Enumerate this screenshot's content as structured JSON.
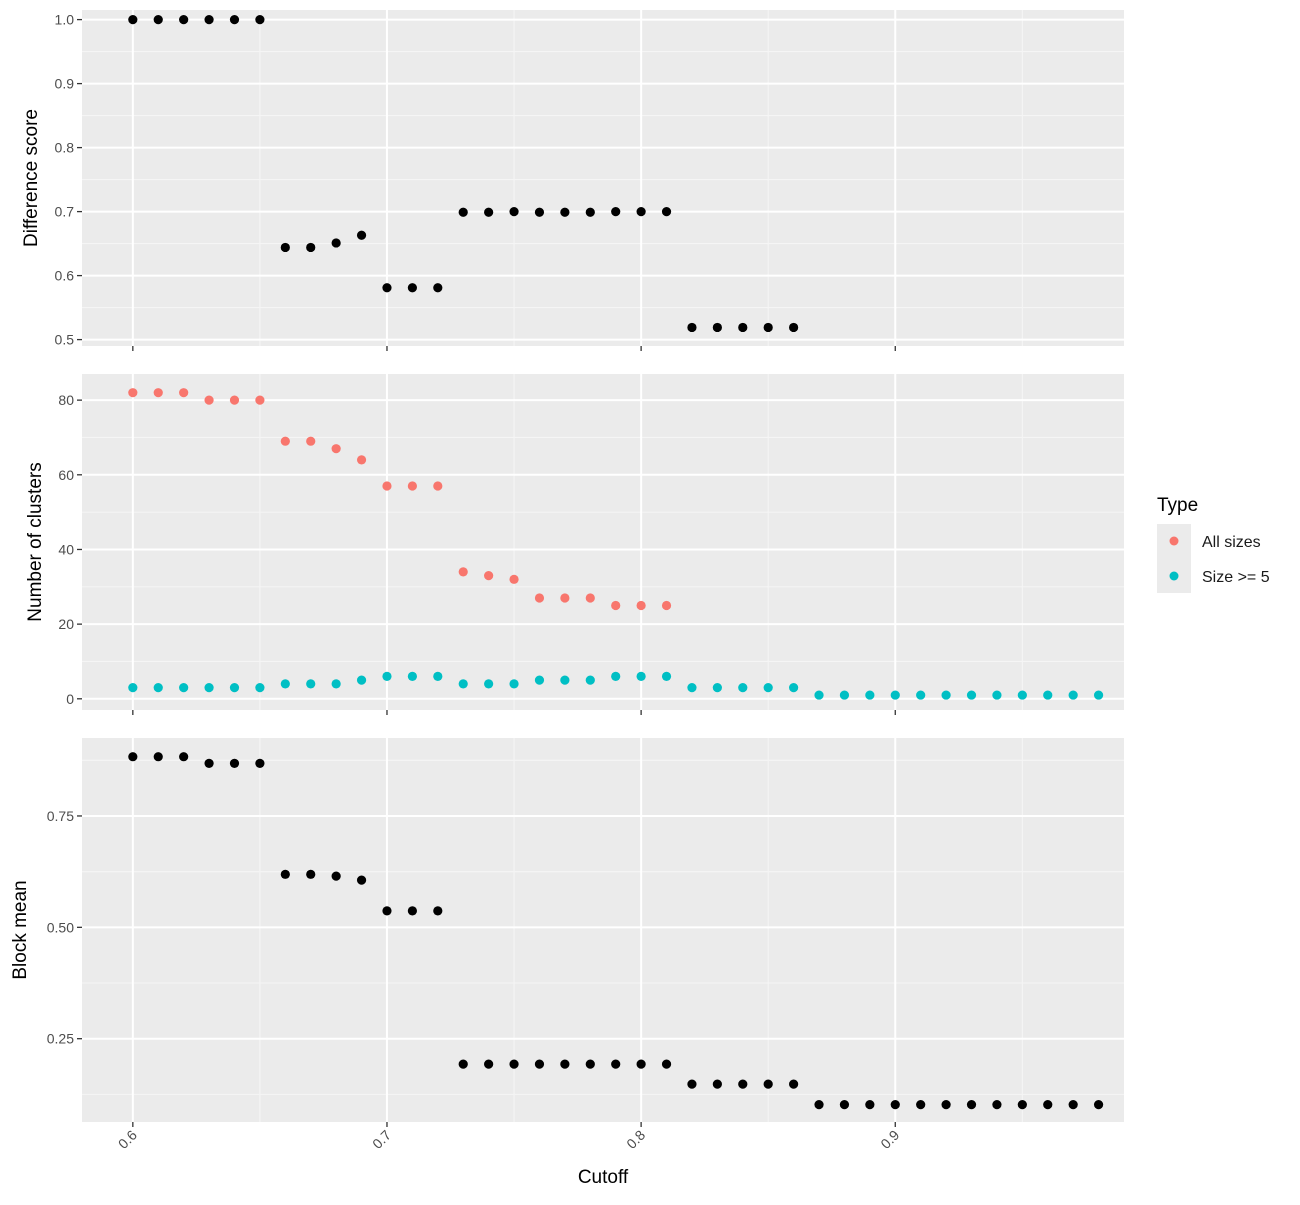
{
  "chart_data": [
    {
      "type": "scatter",
      "ylabel": "Difference score",
      "xlim": [
        0.58,
        0.99
      ],
      "ylim": [
        0.49,
        1.015
      ],
      "xticks": [
        0.6,
        0.7,
        0.8,
        0.9
      ],
      "yticks": [
        0.5,
        0.6,
        0.7,
        0.8,
        0.9,
        1.0
      ],
      "ytick_labels": [
        "0.5",
        "0.6",
        "0.7",
        "0.8",
        "0.9",
        "1.0"
      ],
      "series": [
        {
          "color": "#000000",
          "points": [
            [
              0.6,
              1.0
            ],
            [
              0.61,
              1.0
            ],
            [
              0.62,
              1.0
            ],
            [
              0.63,
              1.0
            ],
            [
              0.64,
              1.0
            ],
            [
              0.65,
              1.0
            ],
            [
              0.66,
              0.644
            ],
            [
              0.67,
              0.644
            ],
            [
              0.68,
              0.651
            ],
            [
              0.69,
              0.663
            ],
            [
              0.7,
              0.581
            ],
            [
              0.71,
              0.581
            ],
            [
              0.72,
              0.581
            ],
            [
              0.73,
              0.699
            ],
            [
              0.74,
              0.699
            ],
            [
              0.75,
              0.7
            ],
            [
              0.76,
              0.699
            ],
            [
              0.77,
              0.699
            ],
            [
              0.78,
              0.699
            ],
            [
              0.79,
              0.7
            ],
            [
              0.8,
              0.7
            ],
            [
              0.81,
              0.7
            ],
            [
              0.82,
              0.519
            ],
            [
              0.83,
              0.519
            ],
            [
              0.84,
              0.519
            ],
            [
              0.85,
              0.519
            ],
            [
              0.86,
              0.519
            ]
          ]
        }
      ]
    },
    {
      "type": "scatter",
      "ylabel": "Number of clusters",
      "xlim": [
        0.58,
        0.99
      ],
      "ylim": [
        -3,
        87
      ],
      "xticks": [
        0.6,
        0.7,
        0.8,
        0.9
      ],
      "yticks": [
        0,
        20,
        40,
        60,
        80
      ],
      "ytick_labels": [
        "0",
        "20",
        "40",
        "60",
        "80"
      ],
      "legend": {
        "title": "Type",
        "position": "right"
      },
      "series": [
        {
          "name": "All sizes",
          "color": "#F8766D",
          "points": [
            [
              0.6,
              82
            ],
            [
              0.61,
              82
            ],
            [
              0.62,
              82
            ],
            [
              0.63,
              80
            ],
            [
              0.64,
              80
            ],
            [
              0.65,
              80
            ],
            [
              0.66,
              69
            ],
            [
              0.67,
              69
            ],
            [
              0.68,
              67
            ],
            [
              0.69,
              64
            ],
            [
              0.7,
              57
            ],
            [
              0.71,
              57
            ],
            [
              0.72,
              57
            ],
            [
              0.73,
              34
            ],
            [
              0.74,
              33
            ],
            [
              0.75,
              32
            ],
            [
              0.76,
              27
            ],
            [
              0.77,
              27
            ],
            [
              0.78,
              27
            ],
            [
              0.79,
              25
            ],
            [
              0.8,
              25
            ],
            [
              0.81,
              25
            ]
          ]
        },
        {
          "name": "Size >= 5",
          "color": "#00BFC4",
          "points": [
            [
              0.6,
              3
            ],
            [
              0.61,
              3
            ],
            [
              0.62,
              3
            ],
            [
              0.63,
              3
            ],
            [
              0.64,
              3
            ],
            [
              0.65,
              3
            ],
            [
              0.66,
              4
            ],
            [
              0.67,
              4
            ],
            [
              0.68,
              4
            ],
            [
              0.69,
              5
            ],
            [
              0.7,
              6
            ],
            [
              0.71,
              6
            ],
            [
              0.72,
              6
            ],
            [
              0.73,
              4
            ],
            [
              0.74,
              4
            ],
            [
              0.75,
              4
            ],
            [
              0.76,
              5
            ],
            [
              0.77,
              5
            ],
            [
              0.78,
              5
            ],
            [
              0.79,
              6
            ],
            [
              0.8,
              6
            ],
            [
              0.81,
              6
            ],
            [
              0.82,
              3
            ],
            [
              0.83,
              3
            ],
            [
              0.84,
              3
            ],
            [
              0.85,
              3
            ],
            [
              0.86,
              3
            ],
            [
              0.87,
              1
            ],
            [
              0.88,
              1
            ],
            [
              0.89,
              1
            ],
            [
              0.9,
              1
            ],
            [
              0.91,
              1
            ],
            [
              0.92,
              1
            ],
            [
              0.93,
              1
            ],
            [
              0.94,
              1
            ],
            [
              0.95,
              1
            ],
            [
              0.96,
              1
            ],
            [
              0.97,
              1
            ],
            [
              0.98,
              1
            ]
          ]
        }
      ]
    },
    {
      "type": "scatter",
      "ylabel": "Block mean",
      "xlabel": "Cutoff",
      "xlim": [
        0.58,
        0.99
      ],
      "ylim": [
        0.063,
        0.925
      ],
      "xticks": [
        0.6,
        0.7,
        0.8,
        0.9
      ],
      "xtick_labels": [
        "0.6",
        "0.7",
        "0.8",
        "0.9"
      ],
      "yticks": [
        0.25,
        0.5,
        0.75
      ],
      "ytick_labels": [
        "0.25",
        "0.50",
        "0.75"
      ],
      "series": [
        {
          "color": "#000000",
          "points": [
            [
              0.6,
              0.883
            ],
            [
              0.61,
              0.883
            ],
            [
              0.62,
              0.883
            ],
            [
              0.63,
              0.868
            ],
            [
              0.64,
              0.868
            ],
            [
              0.65,
              0.868
            ],
            [
              0.66,
              0.619
            ],
            [
              0.67,
              0.619
            ],
            [
              0.68,
              0.615
            ],
            [
              0.69,
              0.606
            ],
            [
              0.7,
              0.537
            ],
            [
              0.71,
              0.537
            ],
            [
              0.72,
              0.537
            ],
            [
              0.73,
              0.193
            ],
            [
              0.74,
              0.193
            ],
            [
              0.75,
              0.193
            ],
            [
              0.76,
              0.193
            ],
            [
              0.77,
              0.193
            ],
            [
              0.78,
              0.193
            ],
            [
              0.79,
              0.193
            ],
            [
              0.8,
              0.193
            ],
            [
              0.81,
              0.193
            ],
            [
              0.82,
              0.148
            ],
            [
              0.83,
              0.148
            ],
            [
              0.84,
              0.148
            ],
            [
              0.85,
              0.148
            ],
            [
              0.86,
              0.148
            ],
            [
              0.87,
              0.102
            ],
            [
              0.88,
              0.102
            ],
            [
              0.89,
              0.102
            ],
            [
              0.9,
              0.102
            ],
            [
              0.91,
              0.102
            ],
            [
              0.92,
              0.102
            ],
            [
              0.93,
              0.102
            ],
            [
              0.94,
              0.102
            ],
            [
              0.95,
              0.102
            ],
            [
              0.96,
              0.102
            ],
            [
              0.97,
              0.102
            ],
            [
              0.98,
              0.102
            ]
          ]
        }
      ]
    }
  ]
}
